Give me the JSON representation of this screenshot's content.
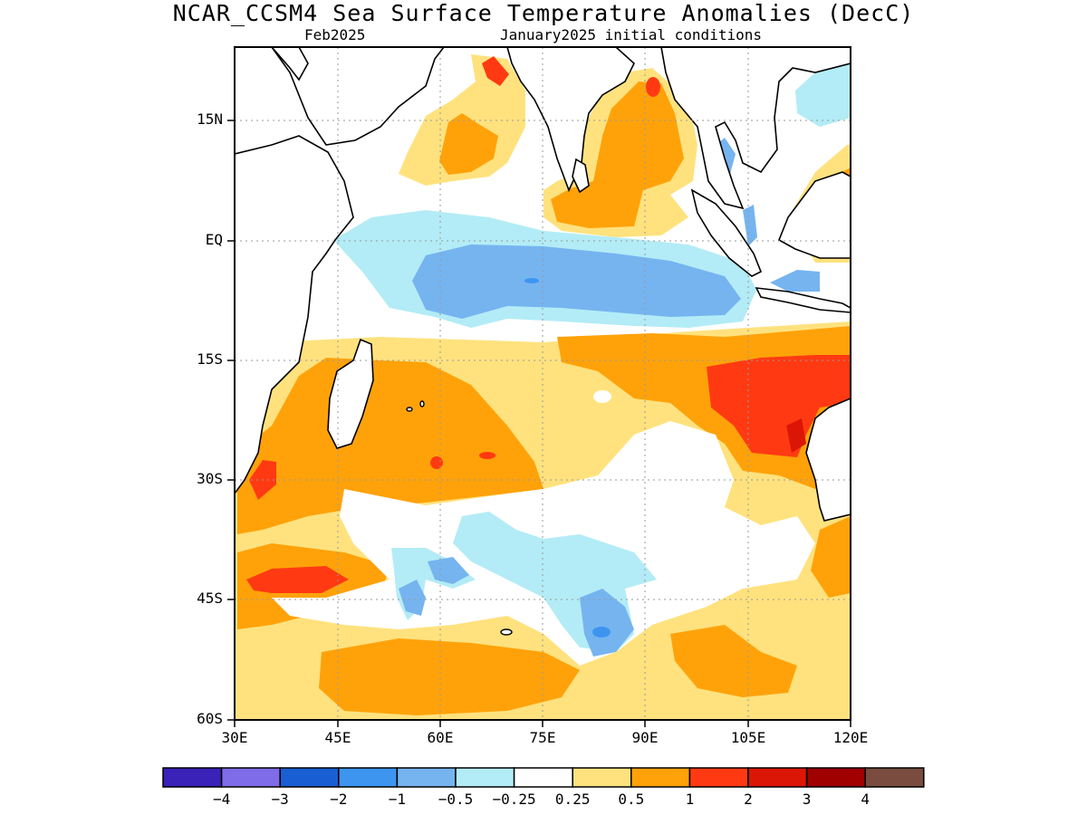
{
  "title": "NCAR_CCSM4 Sea Surface Temperature Anomalies (DecC)",
  "subtitle_left": "Feb2025",
  "subtitle_right": "January2025 initial conditions",
  "map": {
    "lon_range": [
      30,
      120
    ],
    "lat_range": [
      -60,
      24
    ],
    "grid_lines": "dotted",
    "y_ticks": [
      "15N",
      "EQ",
      "15S",
      "30S",
      "45S",
      "60S"
    ],
    "x_ticks": [
      "30E",
      "45E",
      "60E",
      "75E",
      "90E",
      "105E",
      "120E"
    ]
  },
  "colorbar": {
    "colors": [
      "#3a22b8",
      "#7e6ce8",
      "#1a5ed4",
      "#3d95f0",
      "#76b4f0",
      "#b3ecf6",
      "#ffffff",
      "#ffe27e",
      "#ffa20a",
      "#ff3a12",
      "#dc1606",
      "#a00000",
      "#7a4c40"
    ],
    "labels": [
      "−4",
      "−3",
      "−2",
      "−1",
      "−0.5",
      "−0.25",
      "0.25",
      "0.5",
      "1",
      "2",
      "3",
      "4"
    ]
  }
}
